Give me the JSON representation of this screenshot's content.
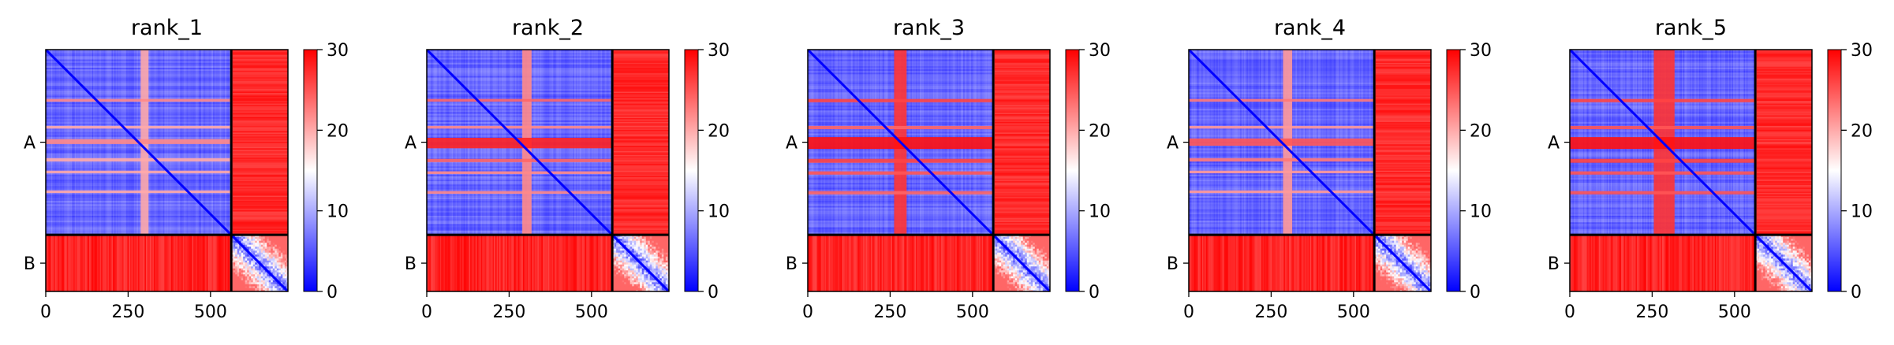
{
  "chart_data": {
    "type": "heatmap",
    "colorbar": {
      "range": [
        0,
        30
      ],
      "ticks": [
        "0",
        "10",
        "20",
        "30"
      ],
      "colormap": [
        "#0000ff",
        "#ffffff",
        "#ff0000"
      ]
    },
    "x_ticks": [
      "0",
      "250",
      "500"
    ],
    "x_tick_values": [
      0,
      250,
      500
    ],
    "x_range": [
      0,
      735
    ],
    "chains": [
      {
        "label": "A",
        "range": [
          0,
          563
        ]
      },
      {
        "label": "B",
        "range": [
          563,
          735
        ]
      }
    ],
    "panels": [
      {
        "title": "rank_1",
        "bands": [
          {
            "axis": "x",
            "range": [
              288,
              312
            ],
            "value": 20
          },
          {
            "axis": "y",
            "range": [
              150,
              158
            ],
            "value": 22
          },
          {
            "axis": "y",
            "range": [
              232,
              240
            ],
            "value": 20
          },
          {
            "axis": "y",
            "range": [
              272,
              287
            ],
            "value": 22
          },
          {
            "axis": "y",
            "range": [
              330,
              340
            ],
            "value": 20
          },
          {
            "axis": "y",
            "range": [
              368,
              376
            ],
            "value": 20
          },
          {
            "axis": "y",
            "range": [
              428,
              436
            ],
            "value": 20
          }
        ]
      },
      {
        "title": "rank_2",
        "bands": [
          {
            "axis": "x",
            "range": [
              290,
              318
            ],
            "value": 22
          },
          {
            "axis": "y",
            "range": [
              150,
              158
            ],
            "value": 24
          },
          {
            "axis": "y",
            "range": [
              232,
              240
            ],
            "value": 22
          },
          {
            "axis": "y",
            "range": [
              268,
              300
            ],
            "value": 28
          },
          {
            "axis": "y",
            "range": [
              332,
              342
            ],
            "value": 24
          },
          {
            "axis": "y",
            "range": [
              370,
              378
            ],
            "value": 22
          },
          {
            "axis": "y",
            "range": [
              430,
              438
            ],
            "value": 22
          }
        ]
      },
      {
        "title": "rank_3",
        "bands": [
          {
            "axis": "x",
            "range": [
              262,
              300
            ],
            "value": 27
          },
          {
            "axis": "y",
            "range": [
              150,
              160
            ],
            "value": 26
          },
          {
            "axis": "y",
            "range": [
              232,
              242
            ],
            "value": 24
          },
          {
            "axis": "y",
            "range": [
              266,
              302
            ],
            "value": 29
          },
          {
            "axis": "y",
            "range": [
              332,
              344
            ],
            "value": 26
          },
          {
            "axis": "y",
            "range": [
              370,
              380
            ],
            "value": 25
          },
          {
            "axis": "y",
            "range": [
              430,
              440
            ],
            "value": 24
          }
        ]
      },
      {
        "title": "rank_4",
        "bands": [
          {
            "axis": "x",
            "range": [
              286,
              314
            ],
            "value": 21
          },
          {
            "axis": "y",
            "range": [
              150,
              158
            ],
            "value": 23
          },
          {
            "axis": "y",
            "range": [
              232,
              240
            ],
            "value": 21
          },
          {
            "axis": "y",
            "range": [
              270,
              292
            ],
            "value": 25
          },
          {
            "axis": "y",
            "range": [
              330,
              340
            ],
            "value": 23
          },
          {
            "axis": "y",
            "range": [
              368,
              376
            ],
            "value": 21
          },
          {
            "axis": "y",
            "range": [
              428,
              436
            ],
            "value": 21
          }
        ]
      },
      {
        "title": "rank_5",
        "bands": [
          {
            "axis": "x",
            "range": [
              255,
              318
            ],
            "value": 27
          },
          {
            "axis": "y",
            "range": [
              150,
              160
            ],
            "value": 26
          },
          {
            "axis": "y",
            "range": [
              232,
              242
            ],
            "value": 25
          },
          {
            "axis": "y",
            "range": [
              266,
              302
            ],
            "value": 29
          },
          {
            "axis": "y",
            "range": [
              332,
              344
            ],
            "value": 26
          },
          {
            "axis": "y",
            "range": [
              370,
              380
            ],
            "value": 25
          },
          {
            "axis": "y",
            "range": [
              430,
              440
            ],
            "value": 25
          }
        ]
      }
    ]
  }
}
